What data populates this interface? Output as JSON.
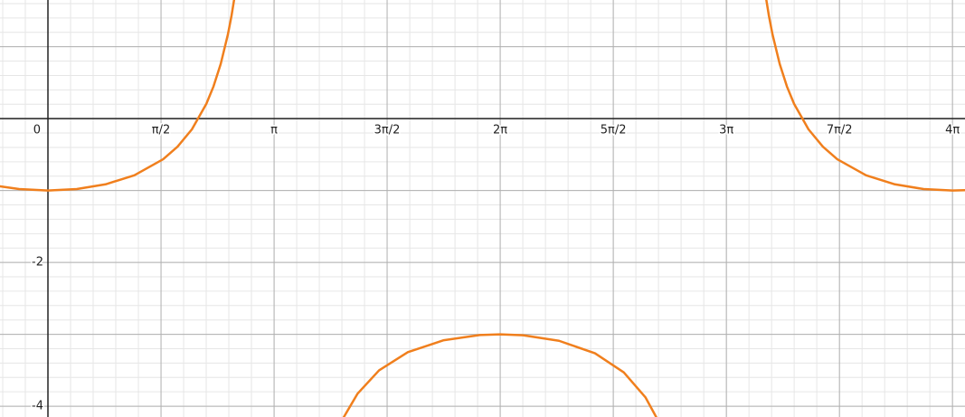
{
  "chart_data": {
    "type": "line",
    "x": [
      -0.666,
      -0.4,
      0,
      0.4,
      0.8,
      1.2,
      1.6,
      1.8,
      2.0,
      2.2,
      2.3,
      2.4,
      2.5,
      2.55,
      2.6,
      null,
      4.1,
      4.3,
      4.6,
      5.0,
      5.5,
      6.0,
      6.283,
      6.6,
      7.1,
      7.6,
      8.0,
      8.3,
      8.5,
      null,
      9.966,
      10.016,
      10.066,
      10.166,
      10.266,
      10.366,
      10.566,
      10.766,
      10.966,
      11.366,
      11.766,
      12.166,
      12.566,
      12.74
    ],
    "series": [
      {
        "color": "#f07f1d",
        "values": [
          -0.942,
          -0.98,
          -1,
          -0.98,
          -0.914,
          -0.788,
          -0.565,
          -0.391,
          -0.149,
          0.205,
          0.448,
          0.76,
          1.171,
          1.43,
          1.738,
          null,
          -4.169,
          -3.827,
          -3.501,
          -3.248,
          -3.082,
          -3.01,
          -3,
          -3.013,
          -3.09,
          -3.264,
          -3.53,
          -3.875,
          -4.242,
          null,
          1.738,
          1.43,
          1.171,
          0.76,
          0.448,
          0.205,
          -0.149,
          -0.391,
          -0.565,
          -0.788,
          -0.914,
          -0.98,
          -1,
          -0.996
        ]
      }
    ],
    "xlim": [
      -0.666,
      12.74
    ],
    "ylim": [
      -4.15,
      1.65
    ],
    "xticks": [
      0,
      {
        "value": 1.571,
        "label": "π/2"
      },
      {
        "value": 3.142,
        "label": "π"
      },
      {
        "value": 4.712,
        "label": "3π/2"
      },
      {
        "value": 6.283,
        "label": "2π"
      },
      {
        "value": 7.854,
        "label": "5π/2"
      },
      {
        "value": 9.425,
        "label": "3π"
      },
      {
        "value": 10.996,
        "label": "7π/2"
      },
      {
        "value": 12.566,
        "label": "4π"
      }
    ],
    "yticks": [
      -4,
      -2
    ],
    "ygrid": [
      -4,
      -3,
      -2,
      -1,
      0,
      1
    ],
    "xminor": [
      -0.628,
      -0.314,
      0,
      0.314,
      0.628,
      0.942,
      1.257,
      1.571,
      1.885,
      2.199,
      2.513,
      2.827,
      3.142,
      3.456,
      3.77,
      4.084,
      4.398,
      4.712,
      5.027,
      5.341,
      5.655,
      5.969,
      6.283,
      6.597,
      6.912,
      7.226,
      7.54,
      7.854,
      8.168,
      8.482,
      8.796,
      9.111,
      9.425,
      9.739,
      10.053,
      10.367,
      10.681,
      10.996,
      11.31,
      11.624,
      11.938,
      12.252,
      12.566
    ],
    "yminor": [
      -4,
      -3.8,
      -3.6,
      -3.4,
      -3.2,
      -3,
      -2.8,
      -2.6,
      -2.4,
      -2.2,
      -2,
      -1.8,
      -1.6,
      -1.4,
      -1.2,
      -1,
      -0.8,
      -0.6,
      -0.4,
      -0.2,
      0,
      0.2,
      0.4,
      0.6,
      0.8,
      1,
      1.2,
      1.4,
      1.6
    ],
    "grid": true
  }
}
